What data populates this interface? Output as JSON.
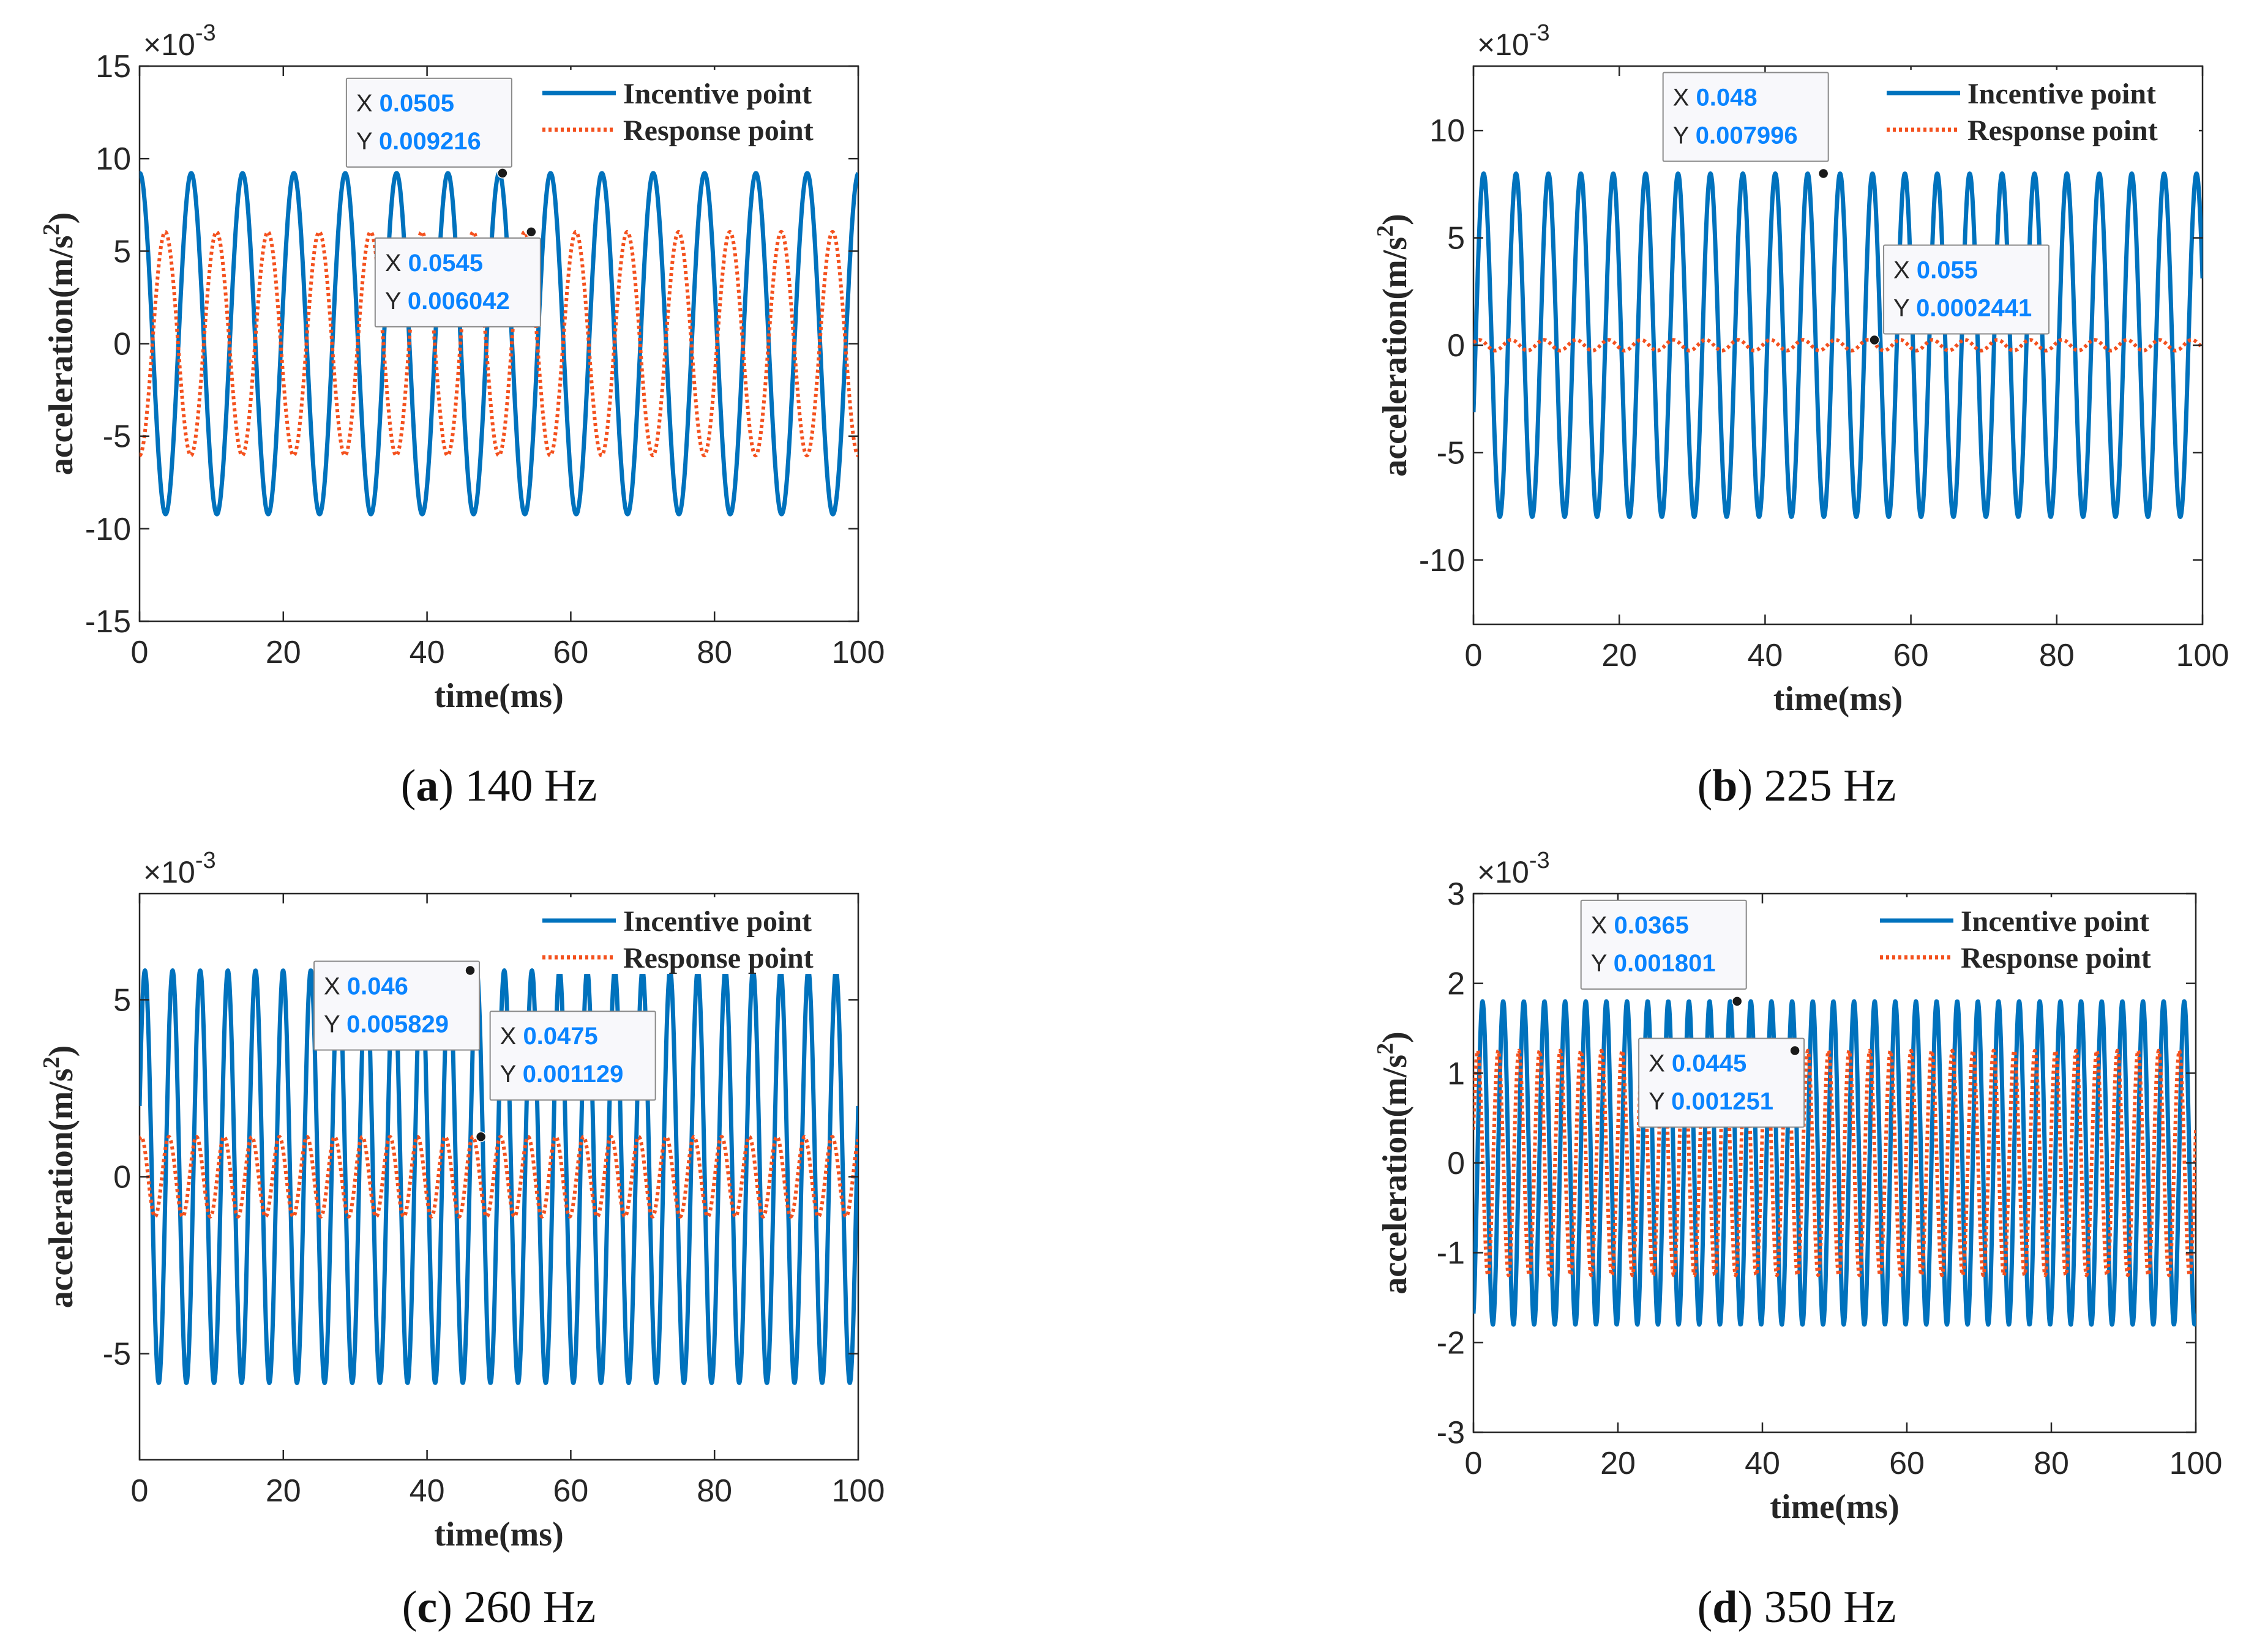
{
  "figure": {
    "panels": [
      {
        "id": "a",
        "caption_letter": "a",
        "caption_text": "140 Hz",
        "exponent_label": "×10",
        "exponent_power": "-3",
        "ylabel_main": "acceleration(m/s",
        "ylabel_sup": "2",
        "ylabel_close": ")",
        "xlabel": "time(ms)",
        "datatips": [
          {
            "x": "0.0505",
            "y": "0.009216",
            "x_label": "X",
            "y_label": "Y"
          },
          {
            "x": "0.0545",
            "y": "0.006042",
            "x_label": "X",
            "y_label": "Y"
          }
        ]
      },
      {
        "id": "b",
        "caption_letter": "b",
        "caption_text": "225 Hz",
        "exponent_label": "×10",
        "exponent_power": "-3",
        "ylabel_main": "acceleration(m/s",
        "ylabel_sup": "2",
        "ylabel_close": ")",
        "xlabel": "time(ms)",
        "datatips": [
          {
            "x": "0.048",
            "y": "0.007996",
            "x_label": "X",
            "y_label": "Y"
          },
          {
            "x": "0.055",
            "y": "0.0002441",
            "x_label": "X",
            "y_label": "Y"
          }
        ]
      },
      {
        "id": "c",
        "caption_letter": "c",
        "caption_text": "260 Hz",
        "exponent_label": "×10",
        "exponent_power": "-3",
        "ylabel_main": "acceleration(m/s",
        "ylabel_sup": "2",
        "ylabel_close": ")",
        "xlabel": "time(ms)",
        "datatips": [
          {
            "x": "0.046",
            "y": "0.005829",
            "x_label": "X",
            "y_label": "Y"
          },
          {
            "x": "0.0475",
            "y": "0.001129",
            "x_label": "X",
            "y_label": "Y"
          }
        ]
      },
      {
        "id": "d",
        "caption_letter": "d",
        "caption_text": "350 Hz",
        "exponent_label": "×10",
        "exponent_power": "-3",
        "ylabel_main": "acceleration(m/s",
        "ylabel_sup": "2",
        "ylabel_close": ")",
        "xlabel": "time(ms)",
        "datatips": [
          {
            "x": "0.0365",
            "y": "0.001801",
            "x_label": "X",
            "y_label": "Y"
          },
          {
            "x": "0.0445",
            "y": "0.001251",
            "x_label": "X",
            "y_label": "Y"
          }
        ]
      }
    ]
  },
  "chart_data": [
    {
      "type": "line",
      "panel": "a",
      "title": "",
      "xlabel": "time(ms)",
      "ylabel": "acceleration(m/s^2)",
      "y_scale_note": "×10^-3",
      "xlim": [
        0,
        100
      ],
      "ylim": [
        -15,
        15
      ],
      "xticks": [
        0,
        20,
        40,
        60,
        80,
        100
      ],
      "yticks": [
        -15,
        -10,
        -5,
        0,
        5,
        10,
        15
      ],
      "legend_position": "top-right",
      "series": [
        {
          "name": "Incentive point",
          "style": "solid",
          "color": "#0072BD",
          "frequency_hz": 140,
          "amplitude": 9.216,
          "phase": 1.53
        },
        {
          "name": "Response point",
          "style": "dotted",
          "color": "#F4511E",
          "frequency_hz": 140,
          "amplitude": 6.042,
          "phase": -1.57
        }
      ],
      "datatips": [
        {
          "series": "Incentive point",
          "x_ms": 50.5,
          "y": 9.216
        },
        {
          "series": "Response point",
          "x_ms": 54.5,
          "y": 6.042
        }
      ]
    },
    {
      "type": "line",
      "panel": "b",
      "title": "",
      "xlabel": "time(ms)",
      "ylabel": "acceleration(m/s^2)",
      "y_scale_note": "×10^-3",
      "xlim": [
        0,
        100
      ],
      "ylim": [
        -13,
        13
      ],
      "xticks": [
        0,
        20,
        40,
        60,
        80,
        100
      ],
      "yticks": [
        -10,
        -5,
        0,
        5,
        10
      ],
      "legend_position": "top-right",
      "series": [
        {
          "name": "Incentive point",
          "style": "solid",
          "color": "#0072BD",
          "frequency_hz": 225,
          "amplitude": 7.996,
          "phase": -0.4
        },
        {
          "name": "Response point",
          "style": "dotted",
          "color": "#F4511E",
          "frequency_hz": 225,
          "amplitude": 0.25,
          "phase": 0.5
        }
      ],
      "datatips": [
        {
          "series": "Incentive point",
          "x_ms": 48,
          "y": 7.996
        },
        {
          "series": "Response point",
          "x_ms": 55,
          "y": 0.2441
        }
      ]
    },
    {
      "type": "line",
      "panel": "c",
      "title": "",
      "xlabel": "time(ms)",
      "ylabel": "acceleration(m/s^2)",
      "y_scale_note": "×10^-3",
      "xlim": [
        0,
        100
      ],
      "ylim": [
        -8,
        8
      ],
      "xticks": [
        0,
        20,
        40,
        60,
        80,
        100
      ],
      "yticks": [
        -5,
        0,
        5
      ],
      "legend_position": "top-right",
      "series": [
        {
          "name": "Incentive point",
          "style": "solid",
          "color": "#0072BD",
          "frequency_hz": 260,
          "amplitude": 5.829,
          "phase": 0.35
        },
        {
          "name": "Response point",
          "style": "dotted",
          "color": "#F4511E",
          "frequency_hz": 260,
          "amplitude": 1.129,
          "phase": 1.2
        }
      ],
      "datatips": [
        {
          "series": "Incentive point",
          "x_ms": 46,
          "y": 5.829
        },
        {
          "series": "Response point",
          "x_ms": 47.5,
          "y": 1.129
        }
      ]
    },
    {
      "type": "line",
      "panel": "d",
      "title": "",
      "xlabel": "time(ms)",
      "ylabel": "acceleration(m/s^2)",
      "y_scale_note": "×10^-3",
      "xlim": [
        0,
        100
      ],
      "ylim": [
        -3,
        3
      ],
      "xticks": [
        0,
        20,
        40,
        60,
        80,
        100
      ],
      "yticks": [
        -3,
        -2,
        -1,
        0,
        1,
        2,
        3
      ],
      "legend_position": "top-right",
      "series": [
        {
          "name": "Incentive point",
          "style": "solid",
          "color": "#0072BD",
          "frequency_hz": 350,
          "amplitude": 1.801,
          "phase": -1.2
        },
        {
          "name": "Response point",
          "style": "dotted",
          "color": "#F4511E",
          "frequency_hz": 350,
          "amplitude": 1.251,
          "phase": 0.3
        }
      ],
      "datatips": [
        {
          "series": "Incentive point",
          "x_ms": 36.5,
          "y": 1.801
        },
        {
          "series": "Response point",
          "x_ms": 44.5,
          "y": 1.251
        }
      ]
    }
  ]
}
